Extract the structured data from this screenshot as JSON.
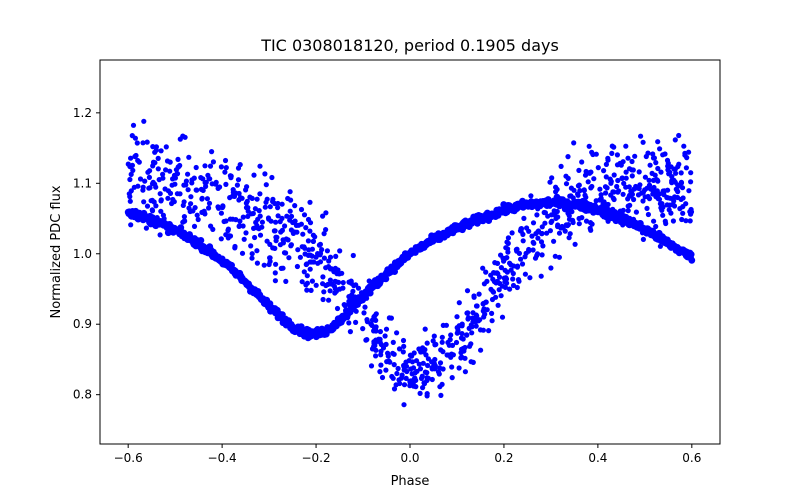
{
  "chart_data": {
    "type": "scatter",
    "title": "TIC 0308018120, period 0.1905 days",
    "xlabel": "Phase",
    "ylabel": "Normalized PDC flux",
    "xlim": [
      -0.66,
      0.66
    ],
    "ylim": [
      0.73,
      1.275
    ],
    "xticks": [
      -0.6,
      -0.4,
      -0.2,
      0.0,
      0.2,
      0.4,
      0.6
    ],
    "xtick_labels": [
      "−0.6",
      "−0.4",
      "−0.2",
      "0.0",
      "0.2",
      "0.4",
      "0.6"
    ],
    "yticks": [
      0.8,
      0.9,
      1.0,
      1.1,
      1.2
    ],
    "ytick_labels": [
      "0.8",
      "0.9",
      "1.0",
      "1.1",
      "1.2"
    ],
    "grid": false,
    "legend": "none",
    "marker_color": "#0000ff",
    "series": [
      {
        "phase_range": [
          -0.6,
          0.6
        ],
        "binned_curve": {
          "x": [
            -0.6,
            -0.55,
            -0.5,
            -0.45,
            -0.4,
            -0.35,
            -0.3,
            -0.25,
            -0.22,
            -0.2,
            -0.18,
            -0.15,
            -0.1,
            -0.05,
            0.0,
            0.05,
            0.1,
            0.15,
            0.2,
            0.25,
            0.3,
            0.35,
            0.4,
            0.45,
            0.5,
            0.55,
            0.6
          ],
          "y": [
            1.06,
            1.048,
            1.033,
            1.015,
            0.99,
            0.96,
            0.925,
            0.897,
            0.887,
            0.886,
            0.89,
            0.905,
            0.94,
            0.972,
            1.0,
            1.02,
            1.036,
            1.05,
            1.062,
            1.07,
            1.073,
            1.07,
            1.063,
            1.05,
            1.035,
            1.015,
            0.995
          ]
        },
        "scatter_envelope": {
          "x": [
            -0.6,
            -0.5,
            -0.4,
            -0.3,
            -0.2,
            -0.15,
            -0.1,
            -0.05,
            0.0,
            0.05,
            0.1,
            0.15,
            0.2,
            0.3,
            0.4,
            0.5,
            0.6
          ],
          "y_center": [
            1.11,
            1.1,
            1.07,
            1.04,
            1.0,
            0.96,
            0.91,
            0.86,
            0.83,
            0.84,
            0.87,
            0.92,
            0.97,
            1.06,
            1.1,
            1.1,
            1.09
          ],
          "y_spread": [
            0.06,
            0.065,
            0.06,
            0.06,
            0.055,
            0.05,
            0.05,
            0.045,
            0.04,
            0.045,
            0.05,
            0.05,
            0.055,
            0.06,
            0.065,
            0.065,
            0.06
          ]
        }
      }
    ]
  }
}
